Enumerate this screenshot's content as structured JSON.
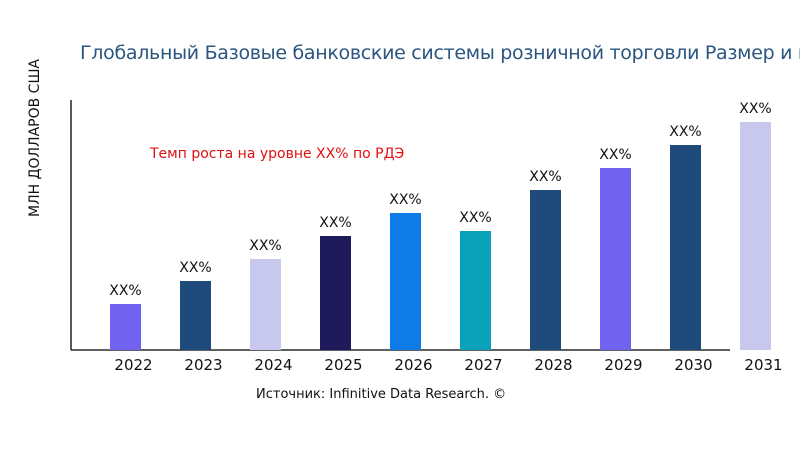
{
  "chart_data": {
    "type": "bar",
    "title": "Глобальный Базовые банковские системы розничной торговли Размер и м",
    "ylabel": "МЛН ДОЛЛАРОВ США",
    "xlabel": "",
    "categories": [
      "2022",
      "2023",
      "2024",
      "2025",
      "2026",
      "2027",
      "2028",
      "2029",
      "2030",
      "2031"
    ],
    "values": [
      46,
      69,
      91,
      114,
      137,
      119,
      160,
      182,
      205,
      228
    ],
    "data_labels": [
      "XX%",
      "XX%",
      "XX%",
      "XX%",
      "XX%",
      "XX%",
      "XX%",
      "XX%",
      "XX%",
      "XX%"
    ],
    "colors": [
      "#7162f0",
      "#1f4b7a",
      "#c8c8ef",
      "#1f1a5a",
      "#0f7be6",
      "#0aa2b8",
      "#1f4b7a",
      "#7162f0",
      "#1f4b7a",
      "#c8c8ef"
    ],
    "ylim": [
      0,
      250
    ],
    "grid": false,
    "annotation": "Темп роста на уровне XX% по РДЭ",
    "source": "Источник: Infinitive Data Research. ©"
  }
}
